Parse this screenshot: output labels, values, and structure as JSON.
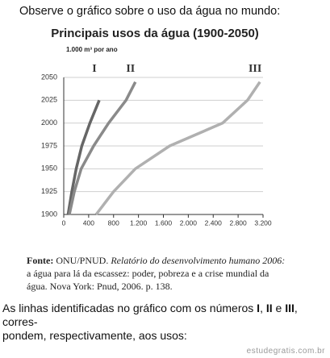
{
  "intro": "Observe o gráfico sobre o uso da água no mundo:",
  "chart_data": {
    "type": "line",
    "title": "Principais usos da água (1900-2050)",
    "subtitle": "1.000 m³ por ano",
    "years": [
      1900,
      1925,
      1950,
      1975,
      2000,
      2025,
      2045
    ],
    "series": [
      {
        "name": "I",
        "color": "#666666",
        "values": [
          70,
          130,
          200,
          290,
          420,
          570,
          null
        ]
      },
      {
        "name": "II",
        "color": "#8a8a8a",
        "values": [
          90,
          170,
          280,
          480,
          720,
          1000,
          1150
        ]
      },
      {
        "name": "III",
        "color": "#b0b0b0",
        "values": [
          520,
          800,
          1150,
          1700,
          2550,
          2950,
          3150
        ]
      }
    ],
    "xlim": [
      0,
      3200
    ],
    "xticks": [
      0,
      400,
      800,
      {
        "value": 1200,
        "label": "1.200"
      },
      {
        "value": 1600,
        "label": "1.600"
      },
      {
        "value": 2000,
        "label": "2.000"
      },
      {
        "value": 2400,
        "label": "2.400"
      },
      {
        "value": 2800,
        "label": "2.800"
      },
      {
        "value": 3200,
        "label": "3.200"
      }
    ],
    "ylim": [
      1900,
      2050
    ],
    "yticks": [
      1900,
      1925,
      1950,
      1975,
      2000,
      2025,
      2050
    ],
    "grid": true
  },
  "source": {
    "label": "Fonte:",
    "author": "ONU/PNUD.",
    "title": "Relatório do desenvolvimento humano 2006:",
    "line2": "a água para lá da escassez: poder, pobreza e a crise mundial da",
    "line3": "água. Nova York: Pnud, 2006. p. 138."
  },
  "question": {
    "part1": "As linhas identificadas no gráfico com os números",
    "n1": "I",
    "comma": ",",
    "n2": "II",
    "and": "e",
    "n3": "III",
    "part2": ", corres-",
    "line2": "pondem, respectivamente, aos usos:"
  },
  "watermark": "estudegratis.com.br"
}
